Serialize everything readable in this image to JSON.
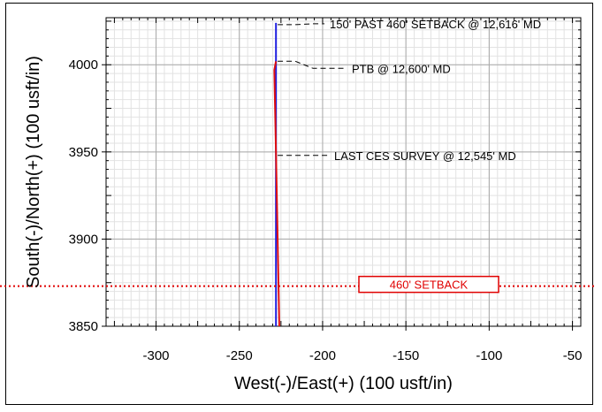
{
  "chart_data": {
    "type": "line",
    "title": "",
    "xlabel": "West(-)/East(+) (100 usft/in)",
    "ylabel": "South(-)/North(+) (100 usft/in)",
    "xlim": [
      -330,
      -45
    ],
    "ylim": [
      3850,
      4027
    ],
    "x_ticks": [
      -300,
      -250,
      -200,
      -150,
      -100,
      -50
    ],
    "x_tick_labels": [
      "-300",
      "-250",
      "-200",
      "-150",
      "-100",
      "-50"
    ],
    "y_ticks": [
      3850,
      3900,
      3950,
      4000
    ],
    "y_tick_labels": [
      "3850",
      "3900",
      "3950",
      "4000"
    ],
    "grid": true,
    "series": [
      {
        "color": "#1f1fe0",
        "x": [
          -228,
          -228
        ],
        "y": [
          3850,
          4024
        ]
      },
      {
        "color": "#e01010",
        "x": [
          -226,
          -227,
          -228,
          -229,
          -228
        ],
        "y": [
          3850,
          3900,
          3950,
          3997,
          4002
        ]
      }
    ],
    "setback_line": {
      "y": 3873,
      "color": "#e00000",
      "label": "460' SETBACK"
    },
    "annotations": [
      {
        "text": "150' PAST 460' SETBACK @ 12,616' MD",
        "y": 4023
      },
      {
        "text": "PTB @ 12,600' MD",
        "y": 4002
      },
      {
        "text": "LAST CES SURVEY @ 12,545' MD",
        "y": 3948
      }
    ]
  }
}
